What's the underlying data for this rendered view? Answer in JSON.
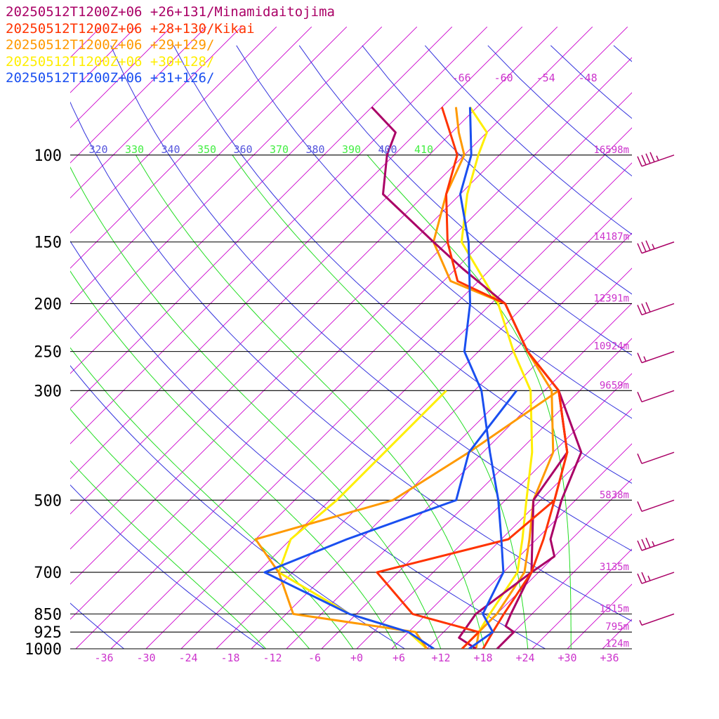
{
  "chart_data": {
    "type": "line",
    "title": "",
    "y_axis": {
      "label": "",
      "scale": "log-pressure",
      "unit": "hPa",
      "levels": [
        "100",
        "150",
        "200",
        "250",
        "300",
        "500",
        "700",
        "850",
        "925",
        "1000"
      ],
      "level_values": [
        100,
        150,
        200,
        250,
        300,
        500,
        700,
        850,
        925,
        1000
      ],
      "heights": [
        "16598m",
        "14187m",
        "12391m",
        "10924m",
        "9659m",
        "5838m",
        "3135m",
        "1515m",
        "795m",
        "124m"
      ]
    },
    "x_axis": {
      "label": "",
      "unit": "°C",
      "skewed": true,
      "ticks": [
        "-36",
        "-30",
        "-24",
        "-18",
        "-12",
        "-6",
        "+0",
        "+6",
        "+12",
        "+18",
        "+24",
        "+30",
        "+36"
      ],
      "tick_values": [
        -36,
        -30,
        -24,
        -18,
        -12,
        -6,
        0,
        6,
        12,
        18,
        24,
        30,
        36
      ],
      "upper_labels": [
        "-66",
        "-60",
        "-54",
        "-48"
      ],
      "upper_values": [
        -66,
        -60,
        -54,
        -48
      ]
    },
    "theta_e_labels": [
      "320",
      "330",
      "340",
      "350",
      "360",
      "370",
      "380",
      "390",
      "400",
      "410"
    ],
    "grid": true,
    "legend_position": "top-left",
    "series": [
      {
        "name": "20250512T1200Z+06 +26+131/Minamidaitojima",
        "color": "#aa0066",
        "temperature": [
          [
            1000,
            20
          ],
          [
            925,
            20
          ],
          [
            900,
            18
          ],
          [
            850,
            17
          ],
          [
            700,
            14
          ],
          [
            650,
            15
          ],
          [
            600,
            12
          ],
          [
            500,
            8
          ],
          [
            400,
            4
          ],
          [
            300,
            -8
          ],
          [
            250,
            -18
          ],
          [
            200,
            -28
          ],
          [
            170,
            -39
          ],
          [
            150,
            -47
          ],
          [
            120,
            -61
          ],
          [
            100,
            -66
          ],
          [
            90,
            -68
          ],
          [
            80,
            -75
          ]
        ],
        "dewpoint": [
          [
            1000,
            17
          ],
          [
            950,
            13
          ],
          [
            850,
            12
          ],
          [
            700,
            14
          ],
          [
            500,
            4
          ],
          [
            400,
            2
          ],
          [
            300,
            -8
          ]
        ]
      },
      {
        "name": "20250512T1200Z+06 +28+130/Kikai",
        "color": "#ff3300",
        "temperature": [
          [
            1000,
            18
          ],
          [
            925,
            17
          ],
          [
            850,
            16
          ],
          [
            700,
            14
          ],
          [
            600,
            11
          ],
          [
            500,
            7
          ],
          [
            400,
            2
          ],
          [
            300,
            -8
          ],
          [
            250,
            -18
          ],
          [
            200,
            -28
          ],
          [
            180,
            -38
          ],
          [
            150,
            -45
          ],
          [
            120,
            -52
          ],
          [
            100,
            -56
          ],
          [
            80,
            -65
          ]
        ],
        "dewpoint": [
          [
            1000,
            15
          ],
          [
            925,
            15
          ],
          [
            850,
            3
          ],
          [
            700,
            -8
          ],
          [
            600,
            6
          ],
          [
            500,
            7
          ],
          [
            400,
            2
          ],
          [
            300,
            -8
          ]
        ]
      },
      {
        "name": "20250512T1200Z+06 +29+129/",
        "color": "#ff9900",
        "temperature": [
          [
            1000,
            17
          ],
          [
            925,
            15
          ],
          [
            850,
            15
          ],
          [
            700,
            13
          ],
          [
            600,
            9
          ],
          [
            500,
            4
          ],
          [
            400,
            0
          ],
          [
            300,
            -9
          ],
          [
            250,
            -18
          ],
          [
            200,
            -28
          ],
          [
            180,
            -39
          ],
          [
            150,
            -47
          ],
          [
            120,
            -52
          ],
          [
            100,
            -55
          ],
          [
            90,
            -59
          ],
          [
            80,
            -63
          ]
        ],
        "dewpoint": [
          [
            1000,
            10
          ],
          [
            925,
            6
          ],
          [
            850,
            -14
          ],
          [
            700,
            -22
          ],
          [
            600,
            -30
          ],
          [
            500,
            -16
          ],
          [
            400,
            -12
          ],
          [
            300,
            -8
          ]
        ]
      },
      {
        "name": "20250512T1200Z+06 +30+128/",
        "color": "#ffee00",
        "temperature": [
          [
            1000,
            15
          ],
          [
            925,
            15
          ],
          [
            850,
            14
          ],
          [
            700,
            12
          ],
          [
            600,
            8
          ],
          [
            500,
            3
          ],
          [
            400,
            -3
          ],
          [
            300,
            -12
          ],
          [
            250,
            -20
          ],
          [
            200,
            -29
          ],
          [
            150,
            -43
          ],
          [
            120,
            -49
          ],
          [
            100,
            -53
          ],
          [
            90,
            -55
          ],
          [
            80,
            -61
          ]
        ],
        "dewpoint": [
          [
            1000,
            10
          ],
          [
            925,
            5
          ],
          [
            850,
            -6
          ],
          [
            700,
            -22
          ],
          [
            600,
            -25
          ],
          [
            500,
            -24
          ],
          [
            400,
            -24
          ],
          [
            300,
            -24
          ]
        ]
      },
      {
        "name": "20250512T1200Z+06 +31+126/",
        "color": "#1a4ff0",
        "temperature": [
          [
            1000,
            16
          ],
          [
            925,
            17
          ],
          [
            850,
            13
          ],
          [
            700,
            10
          ],
          [
            600,
            5
          ],
          [
            500,
            -1
          ],
          [
            400,
            -9
          ],
          [
            300,
            -19
          ],
          [
            250,
            -27
          ],
          [
            200,
            -33
          ],
          [
            150,
            -42
          ],
          [
            120,
            -50
          ],
          [
            100,
            -54
          ],
          [
            80,
            -61
          ]
        ],
        "dewpoint": [
          [
            1000,
            11
          ],
          [
            925,
            5
          ],
          [
            850,
            -6
          ],
          [
            700,
            -24
          ],
          [
            600,
            -17
          ],
          [
            500,
            -7
          ],
          [
            400,
            -12
          ],
          [
            300,
            -14
          ]
        ]
      }
    ],
    "wind_barbs": [
      {
        "p": 100,
        "kt": 45
      },
      {
        "p": 150,
        "kt": 35
      },
      {
        "p": 200,
        "kt": 30
      },
      {
        "p": 250,
        "kt": 15
      },
      {
        "p": 300,
        "kt": 10
      },
      {
        "p": 400,
        "kt": 10
      },
      {
        "p": 500,
        "kt": 10
      },
      {
        "p": 600,
        "kt": 35
      },
      {
        "p": 700,
        "kt": 25
      },
      {
        "p": 850,
        "kt": 5
      }
    ]
  },
  "colors": {
    "isobar": "#000000",
    "isotherm": "#cc00cc",
    "dry_adiabat": "#3333dd",
    "moist_adiabat": "#22dd22",
    "label": "#cc33cc",
    "barb": "#aa0066"
  }
}
